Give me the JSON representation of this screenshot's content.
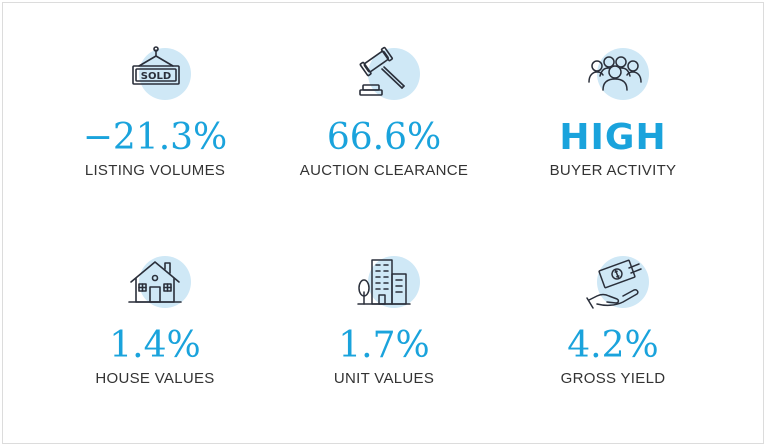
{
  "stats": [
    {
      "value": "−21.3%",
      "label": "LISTING VOLUMES",
      "icon": "sold-sign-icon"
    },
    {
      "value": "66.6%",
      "label": "AUCTION CLEARANCE",
      "icon": "gavel-icon"
    },
    {
      "value": "HIGH",
      "label": "BUYER ACTIVITY",
      "icon": "crowd-icon"
    },
    {
      "value": "1.4%",
      "label": "HOUSE VALUES",
      "icon": "house-icon"
    },
    {
      "value": "1.7%",
      "label": "UNIT VALUES",
      "icon": "apartment-building-icon"
    },
    {
      "value": "4.2%",
      "label": "GROSS YIELD",
      "icon": "money-hand-icon"
    }
  ],
  "sold_sign_text": "SOLD",
  "colors": {
    "accent": "#1aa3dc",
    "icon_circle": "#cfe8f6",
    "label": "#333333",
    "icon_stroke": "#2a2f3a"
  }
}
